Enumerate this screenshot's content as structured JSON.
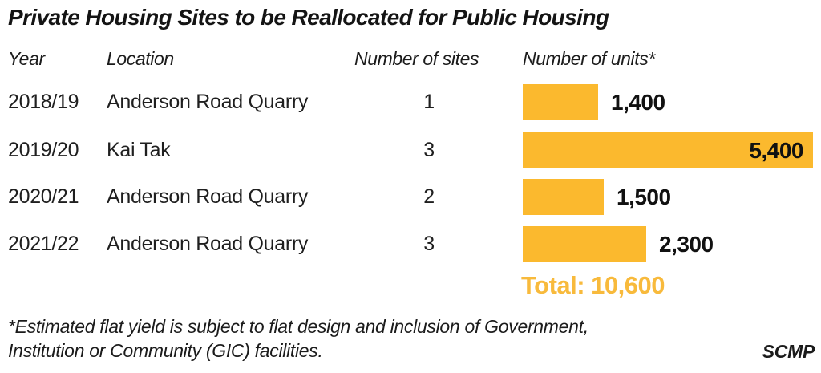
{
  "title": "Private Housing Sites to be Reallocated for Public Housing",
  "columns": {
    "year": "Year",
    "location": "Location",
    "sites": "Number of sites",
    "units": "Number of units*"
  },
  "chart_data": {
    "type": "bar",
    "orientation": "horizontal",
    "categories": [
      "2018/19",
      "2019/20",
      "2020/21",
      "2021/22"
    ],
    "locations": [
      "Anderson Road Quarry",
      "Kai Tak",
      "Anderson Road Quarry",
      "Anderson Road Quarry"
    ],
    "sites": [
      "1",
      "3",
      "2",
      "3"
    ],
    "values": [
      1400,
      5400,
      1500,
      2300
    ],
    "value_labels": [
      "1,400",
      "5,400",
      "1,500",
      "2,300"
    ],
    "max_value": 5400,
    "total": 10600,
    "title": "Private Housing Sites to be Reallocated for Public Housing",
    "xlabel": "Number of units*",
    "legend": "none",
    "grid": "off"
  },
  "total": {
    "text": "Total: 10,600"
  },
  "footnote": {
    "line1": "*Estimated flat yield is subject to flat design and inclusion of Government,",
    "line2": "Institution or Community (GIC) facilities."
  },
  "source": "SCMP",
  "colors": {
    "bar": "#FBB92E",
    "total_text": "#F8BA3C",
    "text": "#1b1b1b",
    "background": "#ffffff"
  }
}
